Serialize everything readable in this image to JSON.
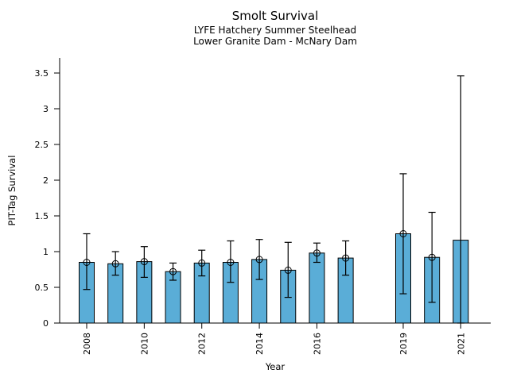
{
  "chart_data": {
    "type": "bar",
    "title": "Smolt Survival",
    "subtitle": [
      "LYFE Hatchery Summer Steelhead",
      "Lower Granite Dam - McNary Dam"
    ],
    "xlabel": "Year",
    "ylabel": "PIT-Tag Survival",
    "ylim": [
      0,
      3.7
    ],
    "y_ticks": [
      0,
      0.5,
      1,
      1.5,
      2,
      2.5,
      3,
      3.5
    ],
    "x_ticks": [
      2008,
      2010,
      2012,
      2014,
      2016,
      2019,
      2021
    ],
    "years_without_data": [
      2018
    ],
    "grid": "off",
    "legend": "none",
    "bar_color": "#5AADD7",
    "edge_color": "#000000",
    "error_bar_color": "#000000",
    "marker": "open-circle",
    "points": [
      {
        "year": 2008,
        "value": 0.85,
        "err_lo": 0.47,
        "err_hi": 1.25,
        "marker": true
      },
      {
        "year": 2009,
        "value": 0.83,
        "err_lo": 0.67,
        "err_hi": 1.0,
        "marker": true
      },
      {
        "year": 2010,
        "value": 0.86,
        "err_lo": 0.64,
        "err_hi": 1.07,
        "marker": true
      },
      {
        "year": 2011,
        "value": 0.72,
        "err_lo": 0.6,
        "err_hi": 0.84,
        "marker": true
      },
      {
        "year": 2012,
        "value": 0.84,
        "err_lo": 0.66,
        "err_hi": 1.02,
        "marker": true
      },
      {
        "year": 2013,
        "value": 0.85,
        "err_lo": 0.57,
        "err_hi": 1.15,
        "marker": true
      },
      {
        "year": 2014,
        "value": 0.89,
        "err_lo": 0.61,
        "err_hi": 1.17,
        "marker": true
      },
      {
        "year": 2015,
        "value": 0.74,
        "err_lo": 0.36,
        "err_hi": 1.13,
        "marker": true
      },
      {
        "year": 2016,
        "value": 0.98,
        "err_lo": 0.85,
        "err_hi": 1.12,
        "marker": true
      },
      {
        "year": 2017,
        "value": 0.91,
        "err_lo": 0.67,
        "err_hi": 1.15,
        "marker": true
      },
      {
        "year": 2019,
        "value": 1.25,
        "err_lo": 0.41,
        "err_hi": 2.09,
        "marker": true
      },
      {
        "year": 2020,
        "value": 0.92,
        "err_lo": 0.29,
        "err_hi": 1.55,
        "marker": true
      },
      {
        "year": 2021,
        "value": 1.16,
        "err_lo": 0.0,
        "err_hi": 3.46,
        "marker": false
      }
    ]
  }
}
